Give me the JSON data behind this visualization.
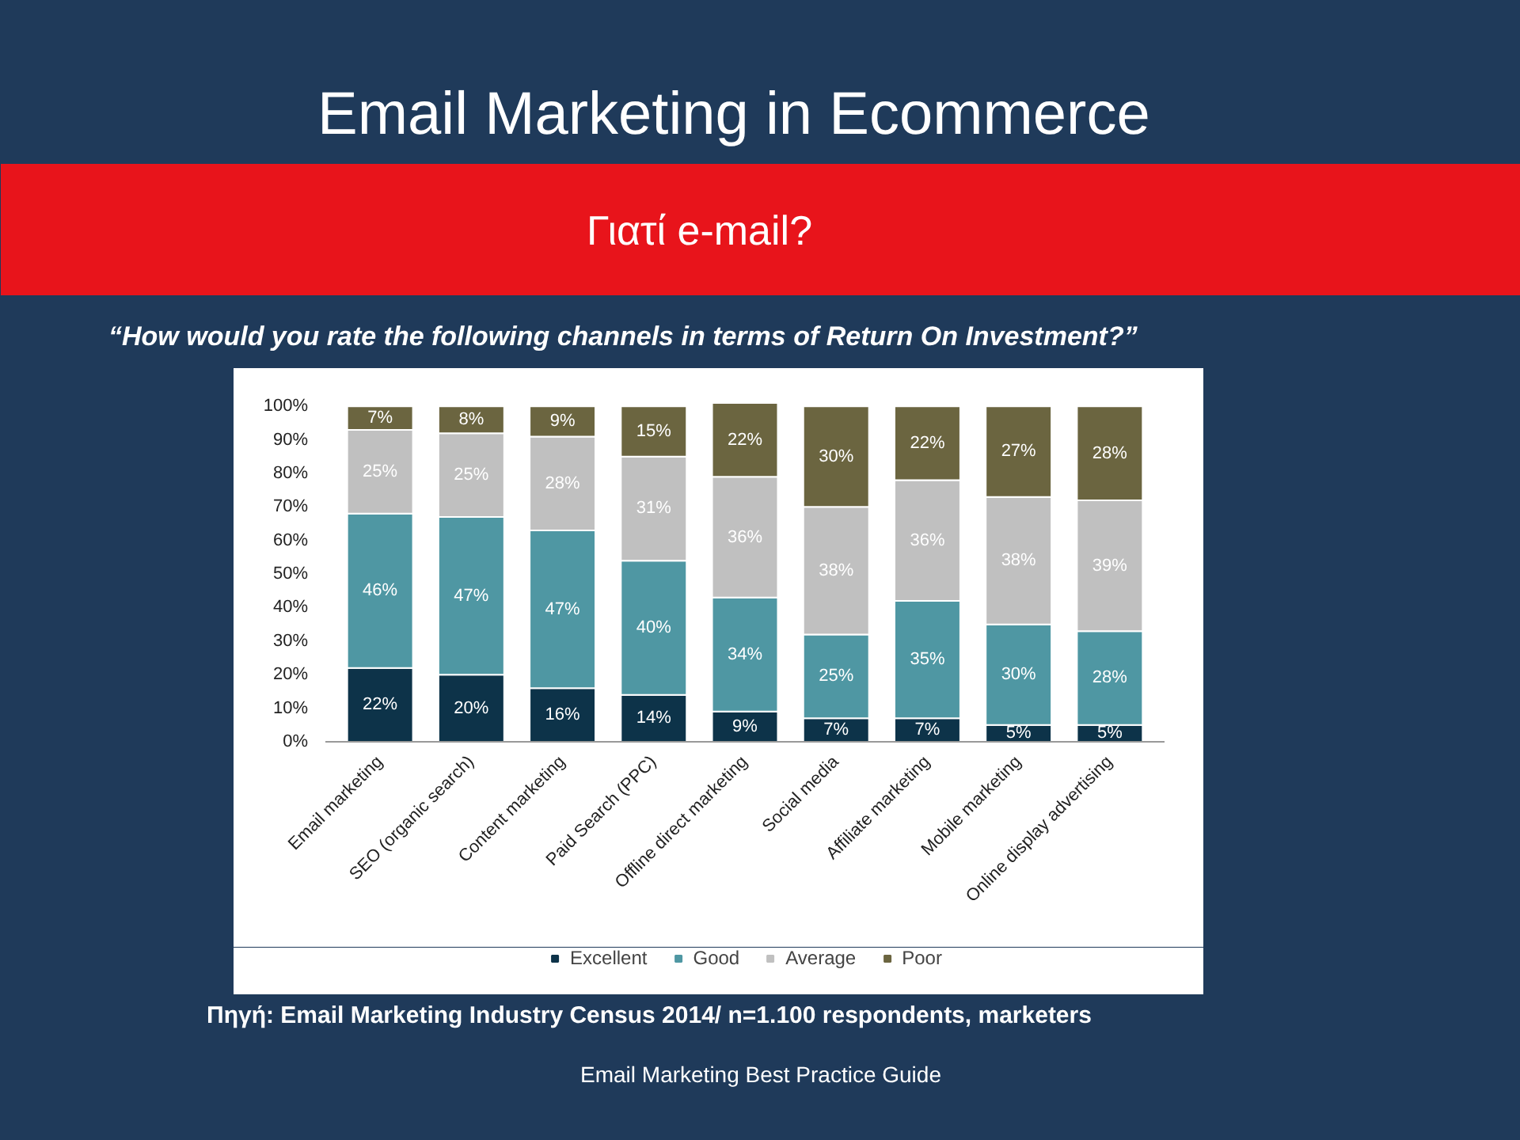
{
  "chart_data": {
    "type": "bar",
    "stacked": true,
    "title": "Email Marketing in Ecommerce",
    "subtitle": "Γιατί e-mail?",
    "annotations": [
      "“How would you rate the following channels in terms of Return On Investment?”",
      "Πηγή: Email Marketing Industry Census 2014/ n=1.100 respondents, marketers",
      "Email Marketing Best Practice Guide"
    ],
    "categories": [
      "Email marketing",
      "SEO (organic search)",
      "Content marketing",
      "Paid Search (PPC)",
      "Offline direct marketing",
      "Social media",
      "Affiliate marketing",
      "Mobile marketing",
      "Online display advertising"
    ],
    "series": [
      {
        "name": "Excellent",
        "color": "#0d3349",
        "values": [
          22,
          20,
          16,
          14,
          9,
          7,
          7,
          5,
          5
        ],
        "value_labels": [
          "22%",
          "20%",
          "16%",
          "14%",
          "9%",
          "7%",
          "7%",
          "5%",
          "5%"
        ]
      },
      {
        "name": "Good",
        "color": "#4f97a3",
        "values": [
          46,
          47,
          47,
          40,
          34,
          25,
          35,
          30,
          28
        ],
        "value_labels": [
          "46%",
          "47%",
          "47%",
          "40%",
          "34%",
          "25%",
          "35%",
          "30%",
          "28%"
        ]
      },
      {
        "name": "Average",
        "color": "#c0c0c0",
        "values": [
          25,
          25,
          28,
          31,
          36,
          38,
          36,
          38,
          39
        ],
        "value_labels": [
          "25%",
          "25%",
          "28%",
          "31%",
          "36%",
          "38%",
          "36%",
          "38%",
          "39%"
        ]
      },
      {
        "name": "Poor",
        "color": "#6b6540",
        "values": [
          7,
          8,
          9,
          15,
          22,
          30,
          22,
          27,
          28
        ],
        "value_labels": [
          "7%",
          "8%",
          "9%",
          "15%",
          "22%",
          "30%",
          "22%",
          "27%",
          "28%"
        ]
      }
    ],
    "ylim": [
      0,
      101
    ],
    "yticks": [
      {
        "value": 0,
        "label": "0%"
      },
      {
        "value": 10,
        "label": "10%"
      },
      {
        "value": 20,
        "label": "20%"
      },
      {
        "value": 30,
        "label": "30%"
      },
      {
        "value": 40,
        "label": "40%"
      },
      {
        "value": 50,
        "label": "50%"
      },
      {
        "value": 60,
        "label": "60%"
      },
      {
        "value": 70,
        "label": "70%"
      },
      {
        "value": 80,
        "label": "80%"
      },
      {
        "value": 90,
        "label": "90%"
      },
      {
        "value": 100,
        "label": "100%"
      }
    ],
    "legend": "bottom"
  }
}
